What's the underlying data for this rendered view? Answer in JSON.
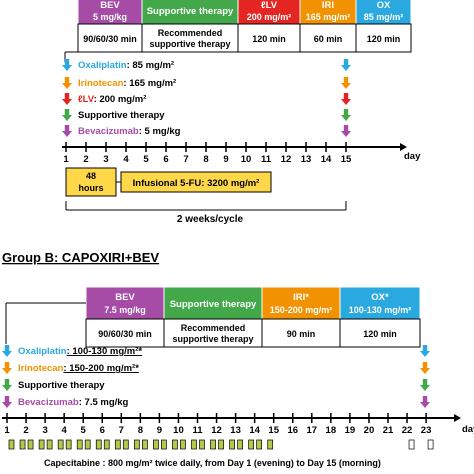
{
  "colors": {
    "bev": "#a64ca6",
    "supportive": "#43a84a",
    "lv": "#e42521",
    "iri": "#f39200",
    "ox": "#2aa9e0",
    "capecitabine_fill": "#b2c94a",
    "fu_box": "#ffd84a"
  },
  "groupA": {
    "header": [
      {
        "label": "BEV",
        "sub": "5 mg/kg",
        "color_key": "bev"
      },
      {
        "label": "Supportive therapy",
        "sub": "",
        "color_key": "supportive"
      },
      {
        "label": "ℓLV",
        "sub": "200 mg/m²",
        "color_key": "lv"
      },
      {
        "label": "IRI",
        "sub": "165 mg/m²",
        "color_key": "iri"
      },
      {
        "label": "OX",
        "sub": "85 mg/m²",
        "color_key": "ox"
      }
    ],
    "durations": [
      "90/60/30 min",
      "Recommended supportive therapy",
      "120 min",
      "60 min",
      "120 min"
    ],
    "drugs": [
      {
        "name": "Oxaliplatin",
        "dose": ": 85 mg/m²",
        "color_key": "ox",
        "icon": "arrow-down-icon"
      },
      {
        "name": "Irinotecan",
        "dose": ": 165 mg/m²",
        "color_key": "iri",
        "icon": "arrow-down-icon"
      },
      {
        "name": "ℓLV",
        "dose": ": 200 mg/m²",
        "color_key": "lv",
        "icon": "arrow-down-icon"
      },
      {
        "name": "Supportive therapy",
        "dose": "",
        "color_key": "supportive",
        "icon": "arrow-down-icon"
      },
      {
        "name": "Bevacizumab",
        "dose": ": 5 mg/kg",
        "color_key": "bev",
        "icon": "arrow-down-icon"
      }
    ],
    "days": [
      "1",
      "2",
      "3",
      "4",
      "5",
      "6",
      "7",
      "8",
      "9",
      "10",
      "11",
      "12",
      "13",
      "14",
      "15"
    ],
    "day_unit": "day",
    "infusion_hours": "48\nhours",
    "infusion_text": "Infusional 5-FU: 3200 mg/m²",
    "cycle": "2 weeks/cycle"
  },
  "groupB": {
    "title": "Group B: CAPOXIRI+BEV",
    "header": [
      {
        "label": "BEV",
        "sub": "7.5 mg/kg",
        "color_key": "bev"
      },
      {
        "label": "Supportive therapy",
        "sub": "",
        "color_key": "supportive"
      },
      {
        "label": "IRI*",
        "sub": "150-200 mg/m²",
        "color_key": "iri"
      },
      {
        "label": "OX*",
        "sub": "100-130 mg/m²",
        "color_key": "ox"
      }
    ],
    "durations": [
      "90/60/30 min",
      "Recommended supportive therapy",
      "90 min",
      "120 min"
    ],
    "drugs": [
      {
        "name": "Oxaliplatin",
        "dose": ": 100-130 mg/m²*",
        "color_key": "ox",
        "icon": "arrow-down-icon"
      },
      {
        "name": "Irinotecan",
        "dose": ": 150-200 mg/m²*",
        "color_key": "iri",
        "icon": "arrow-down-icon"
      },
      {
        "name": "Supportive therapy",
        "dose": "",
        "color_key": "supportive",
        "icon": "arrow-down-icon"
      },
      {
        "name": "Bevacizumab",
        "dose": ": 7.5 mg/kg",
        "color_key": "bev",
        "icon": "arrow-down-icon"
      }
    ],
    "days": [
      "1",
      "2",
      "3",
      "4",
      "5",
      "6",
      "7",
      "8",
      "9",
      "10",
      "11",
      "12",
      "13",
      "14",
      "15",
      "16",
      "17",
      "18",
      "19",
      "20",
      "21",
      "22",
      "23"
    ],
    "day_unit": "day",
    "capecitabine": "Capecitabine : 800 mg/m² twice daily, from Day 1 (evening) to Day 15 (morning)"
  }
}
